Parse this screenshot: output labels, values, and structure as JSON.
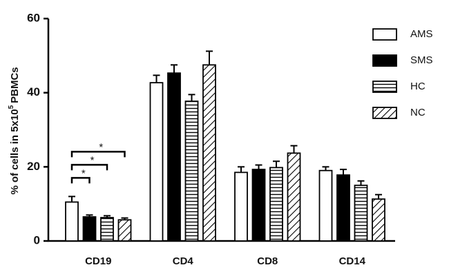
{
  "chart_data": {
    "type": "bar",
    "ylabel": {
      "text": "% of cells in 5x10",
      "superscript": "5",
      "suffix": "PBMCs"
    },
    "categories": [
      "CD19",
      "CD4",
      "CD8",
      "CD14"
    ],
    "ylim": [
      0,
      60
    ],
    "yticks": [
      0,
      20,
      40,
      60
    ],
    "series": [
      {
        "name": "AMS",
        "color": "#000000",
        "pattern": "none",
        "values": [
          10.5,
          42.7,
          18.5,
          19.0
        ],
        "errors": [
          1.5,
          2.0,
          1.5,
          1.0
        ]
      },
      {
        "name": "SMS",
        "color": "#000000",
        "pattern": "solid",
        "values": [
          6.5,
          45.3,
          19.3,
          17.8
        ],
        "errors": [
          0.5,
          2.2,
          1.2,
          1.5
        ]
      },
      {
        "name": "HC",
        "color": "#000000",
        "pattern": "horizontal",
        "values": [
          6.3,
          37.7,
          19.8,
          15.0
        ],
        "errors": [
          0.5,
          1.8,
          1.7,
          1.2
        ]
      },
      {
        "name": "NC",
        "color": "#000000",
        "pattern": "diagonal",
        "values": [
          5.7,
          47.5,
          23.7,
          11.3
        ],
        "errors": [
          0.5,
          3.7,
          2.0,
          1.2
        ]
      }
    ],
    "annotations": [
      {
        "text": "*",
        "category": "CD19",
        "between": [
          "AMS",
          "SMS"
        ]
      },
      {
        "text": "*",
        "category": "CD19",
        "between": [
          "AMS",
          "HC"
        ]
      },
      {
        "text": "*",
        "category": "CD19",
        "between": [
          "AMS",
          "NC"
        ]
      }
    ],
    "legend": "top-right"
  }
}
